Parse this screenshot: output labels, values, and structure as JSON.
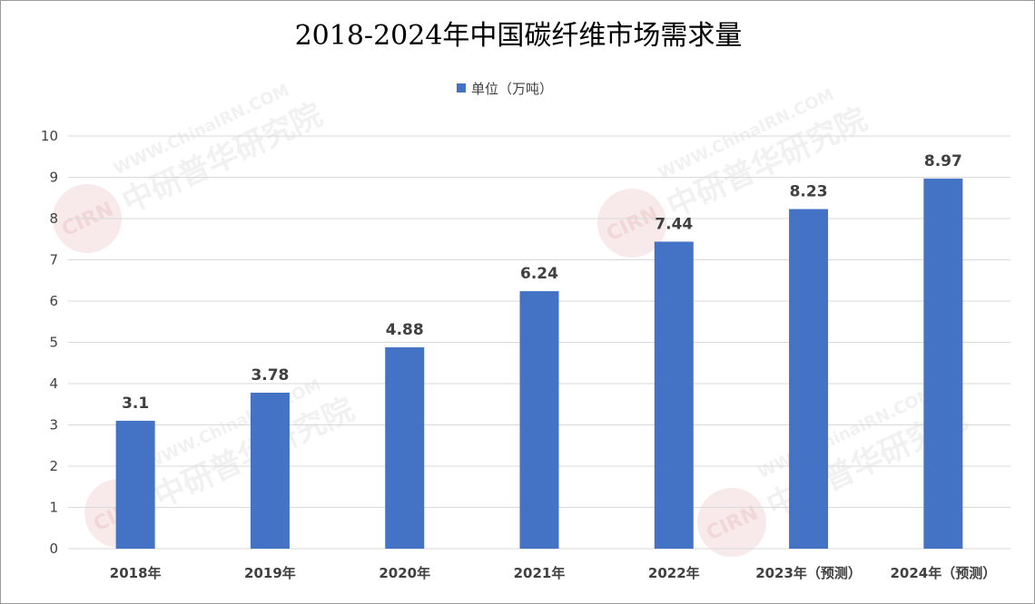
{
  "chart_data": {
    "type": "bar",
    "title": "2018-2024年中国碳纤维市场需求量",
    "categories": [
      "2018年",
      "2019年",
      "2020年",
      "2021年",
      "2022年",
      "2023年（预测）",
      "2024年（预测）"
    ],
    "series": [
      {
        "name": "单位（万吨）",
        "values": [
          3.1,
          3.78,
          4.88,
          6.24,
          7.44,
          8.23,
          8.97
        ],
        "labels": [
          "3.1",
          "3.78",
          "4.88",
          "6.24",
          "7.44",
          "8.23",
          "8.97"
        ],
        "color": "#4472C4"
      }
    ],
    "yticks": [
      "0",
      "1",
      "2",
      "3",
      "4",
      "5",
      "6",
      "7",
      "8",
      "9",
      "10"
    ],
    "ylim": [
      0,
      10
    ],
    "grid": true,
    "legend": "top-center",
    "gridline_color": "#d9d9d9"
  },
  "watermark": {
    "text": "中研普华研究院",
    "url": "WWW.ChinaIRN.COM",
    "logo": "CIRN",
    "color": "#c8c8c8"
  }
}
